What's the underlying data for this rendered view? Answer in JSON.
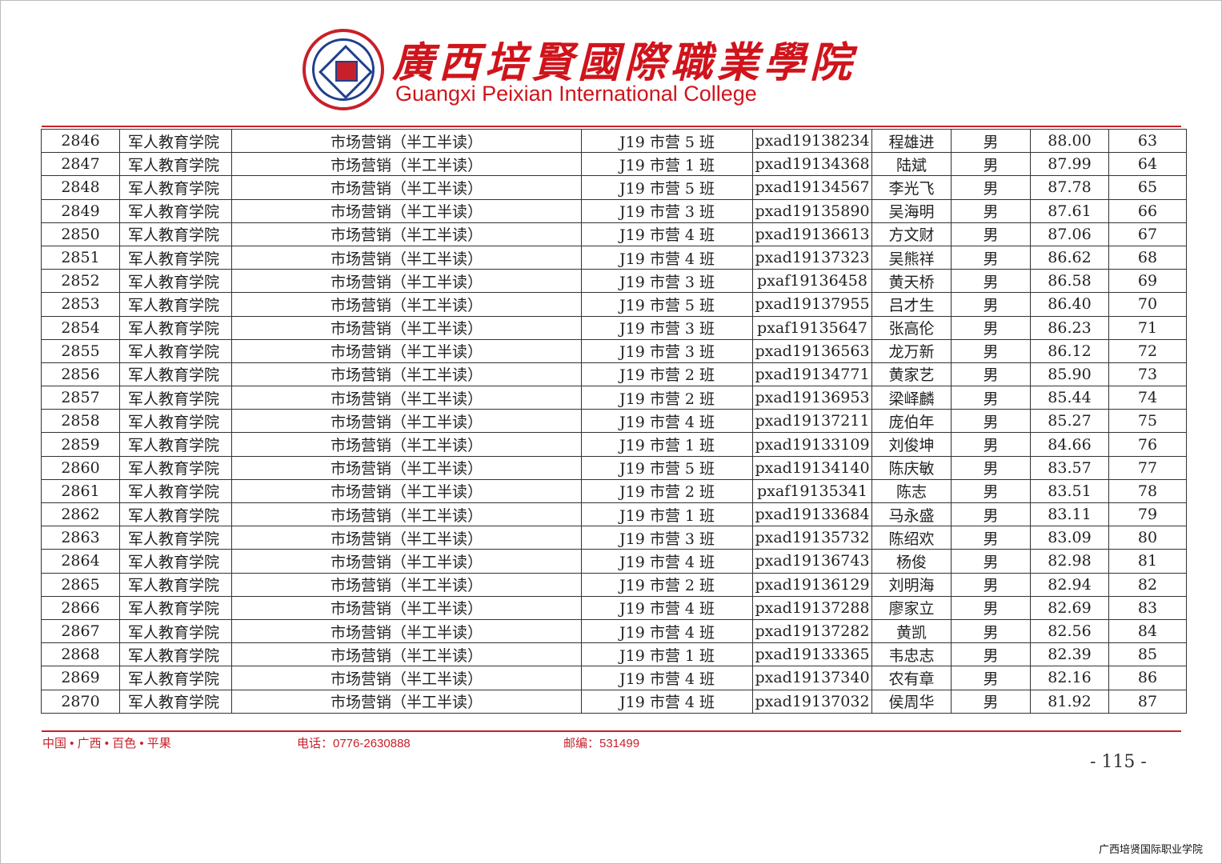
{
  "header": {
    "title_cn": "廣西培賢國際職業學院",
    "title_en": "Guangxi Peixian International College",
    "logo_text": "广西培贤国际职业学院 GUANGXI PEIXIAN INTERNATIONAL COLLEGE"
  },
  "table": {
    "rows": [
      [
        "2846",
        "军人教育学院",
        "市场营销（半工半读）",
        "J19 市营 5 班",
        "pxad19138234",
        "程雄进",
        "男",
        "88.00",
        "63"
      ],
      [
        "2847",
        "军人教育学院",
        "市场营销（半工半读）",
        "J19 市营 1 班",
        "pxad19134368",
        "陆斌",
        "男",
        "87.99",
        "64"
      ],
      [
        "2848",
        "军人教育学院",
        "市场营销（半工半读）",
        "J19 市营 5 班",
        "pxad19134567",
        "李光飞",
        "男",
        "87.78",
        "65"
      ],
      [
        "2849",
        "军人教育学院",
        "市场营销（半工半读）",
        "J19 市营 3 班",
        "pxad19135890",
        "吴海明",
        "男",
        "87.61",
        "66"
      ],
      [
        "2850",
        "军人教育学院",
        "市场营销（半工半读）",
        "J19 市营 4 班",
        "pxad19136613",
        "方文财",
        "男",
        "87.06",
        "67"
      ],
      [
        "2851",
        "军人教育学院",
        "市场营销（半工半读）",
        "J19 市营 4 班",
        "pxad19137323",
        "吴熊祥",
        "男",
        "86.62",
        "68"
      ],
      [
        "2852",
        "军人教育学院",
        "市场营销（半工半读）",
        "J19 市营 3 班",
        "pxaf19136458",
        "黄天桥",
        "男",
        "86.58",
        "69"
      ],
      [
        "2853",
        "军人教育学院",
        "市场营销（半工半读）",
        "J19 市营 5 班",
        "pxad19137955",
        "吕才生",
        "男",
        "86.40",
        "70"
      ],
      [
        "2854",
        "军人教育学院",
        "市场营销（半工半读）",
        "J19 市营 3 班",
        "pxaf19135647",
        "张高伦",
        "男",
        "86.23",
        "71"
      ],
      [
        "2855",
        "军人教育学院",
        "市场营销（半工半读）",
        "J19 市营 3 班",
        "pxad19136563",
        "龙万新",
        "男",
        "86.12",
        "72"
      ],
      [
        "2856",
        "军人教育学院",
        "市场营销（半工半读）",
        "J19 市营 2 班",
        "pxad19134771",
        "黄家艺",
        "男",
        "85.90",
        "73"
      ],
      [
        "2857",
        "军人教育学院",
        "市场营销（半工半读）",
        "J19 市营 2 班",
        "pxad19136953",
        "梁峄麟",
        "男",
        "85.44",
        "74"
      ],
      [
        "2858",
        "军人教育学院",
        "市场营销（半工半读）",
        "J19 市营 4 班",
        "pxad19137211",
        "庞伯年",
        "男",
        "85.27",
        "75"
      ],
      [
        "2859",
        "军人教育学院",
        "市场营销（半工半读）",
        "J19 市营 1 班",
        "pxad19133109",
        "刘俊坤",
        "男",
        "84.66",
        "76"
      ],
      [
        "2860",
        "军人教育学院",
        "市场营销（半工半读）",
        "J19 市营 5 班",
        "pxad19134140",
        "陈庆敏",
        "男",
        "83.57",
        "77"
      ],
      [
        "2861",
        "军人教育学院",
        "市场营销（半工半读）",
        "J19 市营 2 班",
        "pxaf19135341",
        "陈志",
        "男",
        "83.51",
        "78"
      ],
      [
        "2862",
        "军人教育学院",
        "市场营销（半工半读）",
        "J19 市营 1 班",
        "pxad19133684",
        "马永盛",
        "男",
        "83.11",
        "79"
      ],
      [
        "2863",
        "军人教育学院",
        "市场营销（半工半读）",
        "J19 市营 3 班",
        "pxad19135732",
        "陈绍欢",
        "男",
        "83.09",
        "80"
      ],
      [
        "2864",
        "军人教育学院",
        "市场营销（半工半读）",
        "J19 市营 4 班",
        "pxad19136743",
        "杨俊",
        "男",
        "82.98",
        "81"
      ],
      [
        "2865",
        "军人教育学院",
        "市场营销（半工半读）",
        "J19 市营 2 班",
        "pxad19136129",
        "刘明海",
        "男",
        "82.94",
        "82"
      ],
      [
        "2866",
        "军人教育学院",
        "市场营销（半工半读）",
        "J19 市营 4 班",
        "pxad19137288",
        "廖家立",
        "男",
        "82.69",
        "83"
      ],
      [
        "2867",
        "军人教育学院",
        "市场营销（半工半读）",
        "J19 市营 4 班",
        "pxad19137282",
        "黄凯",
        "男",
        "82.56",
        "84"
      ],
      [
        "2868",
        "军人教育学院",
        "市场营销（半工半读）",
        "J19 市营 1 班",
        "pxad19133365",
        "韦忠志",
        "男",
        "82.39",
        "85"
      ],
      [
        "2869",
        "军人教育学院",
        "市场营销（半工半读）",
        "J19 市营 4 班",
        "pxad19137340",
        "农有章",
        "男",
        "82.16",
        "86"
      ],
      [
        "2870",
        "军人教育学院",
        "市场营销（半工半读）",
        "J19 市营 4 班",
        "pxad19137032",
        "侯周华",
        "男",
        "81.92",
        "87"
      ]
    ]
  },
  "footer": {
    "address": "中国 • 广西 • 百色 • 平果",
    "phone": "电话：0776-2630888",
    "postcode": "邮编：531499",
    "page_number": "- 115 -",
    "watermark": "广西培贤国际职业学院"
  },
  "colors": {
    "brand_red": "#d0141c",
    "logo_blue": "#1f3f8f"
  }
}
